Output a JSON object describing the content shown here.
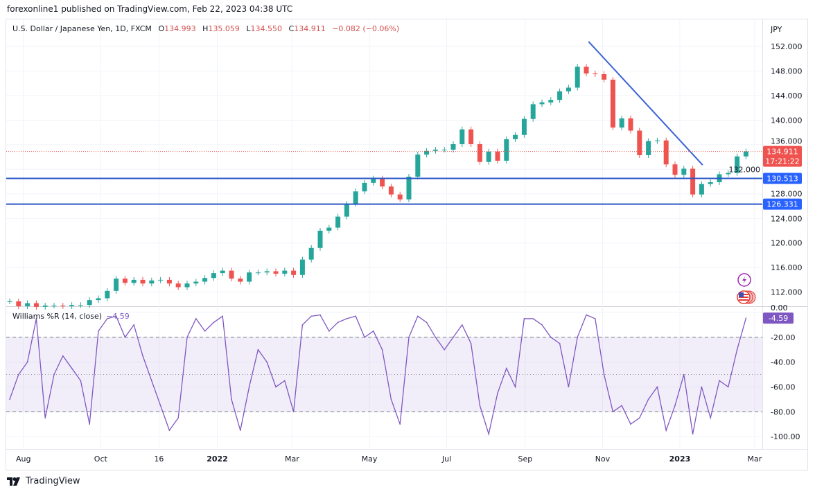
{
  "publisher_line": "forexonline1 published on TradingView.com, Feb 22, 2023 04:38 UTC",
  "legend": {
    "symbol": "U.S. Dollar / Japanese Yen, 1D, FXCM",
    "open_label": "O",
    "open": "134.993",
    "high_label": "H",
    "high": "135.059",
    "low_label": "L",
    "low": "134.550",
    "close_label": "C",
    "close": "134.911",
    "change": "−0.082 (−0.06%)"
  },
  "indicator_legend": {
    "name": "Williams %R (14, close)",
    "value": "−4.59"
  },
  "footer": {
    "brand": "TradingView"
  },
  "colors": {
    "up": "#26a69a",
    "down": "#ef5350",
    "hline": "#2a56c6",
    "trendline": "#3a62d6",
    "indicator": "#7e57c2",
    "last_price": "#ef5350"
  },
  "icons": [
    "lightning-event-icon",
    "us-flag-events-icon",
    "tradingview-logo-icon"
  ],
  "chart_data": [
    {
      "type": "candlestick",
      "title": "U.S. Dollar / Japanese Yen, 1D, FXCM",
      "currency_label": "JPY",
      "ylim": [
        109.7,
        156.3
      ],
      "y_ticks": [
        "152.000",
        "148.000",
        "144.000",
        "140.000",
        "136.000",
        "132.000",
        "128.000",
        "124.000",
        "120.000",
        "116.000",
        "112.000"
      ],
      "x_ticks": [
        {
          "label": "Aug",
          "date": "2021-08-01"
        },
        {
          "label": "Oct",
          "date": "2021-10-01"
        },
        {
          "label": "16",
          "date": "2021-11-16"
        },
        {
          "label": "2022",
          "date": "2022-01-01"
        },
        {
          "label": "Mar",
          "date": "2022-03-01"
        },
        {
          "label": "May",
          "date": "2022-05-01"
        },
        {
          "label": "Jul",
          "date": "2022-07-01"
        },
        {
          "label": "Sep",
          "date": "2022-09-01"
        },
        {
          "label": "Nov",
          "date": "2022-11-01"
        },
        {
          "label": "2023",
          "date": "2023-01-01"
        },
        {
          "label": "Mar",
          "date": "2023-03-01"
        }
      ],
      "dates": [
        "2021-07-19",
        "2021-07-26",
        "2021-08-02",
        "2021-08-09",
        "2021-08-16",
        "2021-08-23",
        "2021-08-30",
        "2021-09-06",
        "2021-09-13",
        "2021-09-20",
        "2021-09-27",
        "2021-10-04",
        "2021-10-11",
        "2021-10-18",
        "2021-10-25",
        "2021-11-01",
        "2021-11-08",
        "2021-11-15",
        "2021-11-22",
        "2021-11-29",
        "2021-12-06",
        "2021-12-13",
        "2021-12-20",
        "2021-12-27",
        "2022-01-03",
        "2022-01-10",
        "2022-01-17",
        "2022-01-24",
        "2022-01-31",
        "2022-02-07",
        "2022-02-14",
        "2022-02-21",
        "2022-02-28",
        "2022-03-07",
        "2022-03-14",
        "2022-03-21",
        "2022-03-28",
        "2022-04-04",
        "2022-04-11",
        "2022-04-18",
        "2022-04-25",
        "2022-05-02",
        "2022-05-09",
        "2022-05-16",
        "2022-05-23",
        "2022-05-30",
        "2022-06-06",
        "2022-06-13",
        "2022-06-20",
        "2022-06-27",
        "2022-07-04",
        "2022-07-11",
        "2022-07-18",
        "2022-07-25",
        "2022-08-01",
        "2022-08-08",
        "2022-08-15",
        "2022-08-22",
        "2022-08-29",
        "2022-09-05",
        "2022-09-12",
        "2022-09-19",
        "2022-09-26",
        "2022-10-03",
        "2022-10-10",
        "2022-10-17",
        "2022-10-24",
        "2022-10-31",
        "2022-11-07",
        "2022-11-14",
        "2022-11-21",
        "2022-11-28",
        "2022-12-05",
        "2022-12-12",
        "2022-12-19",
        "2022-12-26",
        "2023-01-02",
        "2023-01-09",
        "2023-01-16",
        "2023-01-23",
        "2023-01-30",
        "2023-02-06",
        "2023-02-13",
        "2023-02-20"
      ],
      "close": [
        110.5,
        109.7,
        110.2,
        109.6,
        109.8,
        109.8,
        109.7,
        109.9,
        109.9,
        110.7,
        111.0,
        112.2,
        114.2,
        113.5,
        114.0,
        113.4,
        113.9,
        114.0,
        113.4,
        112.8,
        113.4,
        113.7,
        114.3,
        115.1,
        115.5,
        114.2,
        113.7,
        115.2,
        115.2,
        115.4,
        115.0,
        115.5,
        114.8,
        117.3,
        119.2,
        122.0,
        122.5,
        124.3,
        126.4,
        128.4,
        129.8,
        130.5,
        129.2,
        127.9,
        127.1,
        130.8,
        134.4,
        135.0,
        135.2,
        135.2,
        136.1,
        138.5,
        136.1,
        133.2,
        134.9,
        133.4,
        136.9,
        137.6,
        140.2,
        142.6,
        142.9,
        143.3,
        144.7,
        145.3,
        148.7,
        147.6,
        147.5,
        146.6,
        138.8,
        140.3,
        138.3,
        134.3,
        136.6,
        136.7,
        132.8,
        131.1,
        132.1,
        127.9,
        129.6,
        129.9,
        131.2,
        131.4,
        134.1,
        134.911
      ],
      "horizontal_levels": [
        {
          "value": 130.513,
          "label": "130.513"
        },
        {
          "value": 126.331,
          "label": "126.331"
        }
      ],
      "trendline": {
        "from": {
          "date": "2022-10-21",
          "price": 152.8
        },
        "to": {
          "date": "2023-01-19",
          "price": 132.7
        }
      },
      "last_price": {
        "value": 134.911,
        "label": "134.911",
        "countdown": "17:21:22"
      }
    },
    {
      "type": "line",
      "title": "Williams %R (14, close)",
      "ylim": [
        -110,
        5
      ],
      "y_ticks": [
        "0.00",
        "-20.00",
        "-40.00",
        "-60.00",
        "-80.00",
        "-100.00"
      ],
      "band": [
        -80,
        -20
      ],
      "midline": -50,
      "values": [
        -70,
        -50,
        -40,
        -5,
        -85,
        -50,
        -35,
        -45,
        -55,
        -90,
        -15,
        -5,
        -3,
        -20,
        -10,
        -35,
        -55,
        -75,
        -95,
        -85,
        -20,
        -5,
        -15,
        -8,
        -3,
        -70,
        -95,
        -60,
        -30,
        -40,
        -60,
        -55,
        -80,
        -10,
        -3,
        -2,
        -15,
        -8,
        -5,
        -3,
        -20,
        -15,
        -30,
        -70,
        -90,
        -20,
        -3,
        -8,
        -20,
        -30,
        -20,
        -10,
        -25,
        -75,
        -98,
        -65,
        -45,
        -60,
        -5,
        -5,
        -10,
        -20,
        -25,
        -60,
        -20,
        -2,
        -5,
        -50,
        -80,
        -75,
        -90,
        -85,
        -70,
        -60,
        -95,
        -75,
        -50,
        -98,
        -60,
        -85,
        -55,
        -60,
        -30,
        -4.59
      ],
      "last_value_label": "-4.59"
    }
  ]
}
